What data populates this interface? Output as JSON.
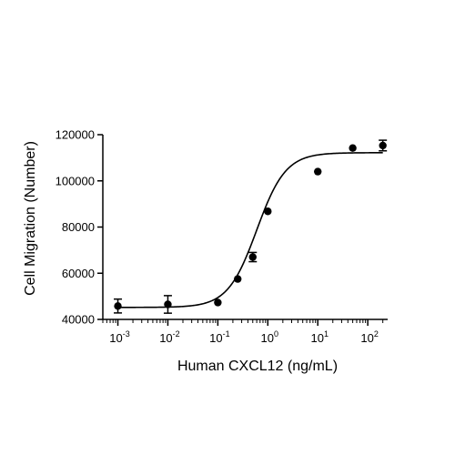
{
  "chart_data": {
    "type": "scatter",
    "xlabel": "Human CXCL12 (ng/mL)",
    "ylabel": "Cell Migration (Number)",
    "x_scale": "log",
    "xlim": [
      0.0005,
      250
    ],
    "ylim": [
      40000,
      120000
    ],
    "x_ticks": [
      {
        "value": 0.001,
        "base": "10",
        "exp": "-3"
      },
      {
        "value": 0.01,
        "base": "10",
        "exp": "-2"
      },
      {
        "value": 0.1,
        "base": "10",
        "exp": "-1"
      },
      {
        "value": 1,
        "base": "10",
        "exp": "0"
      },
      {
        "value": 10,
        "base": "10",
        "exp": "1"
      },
      {
        "value": 100,
        "base": "10",
        "exp": "2"
      }
    ],
    "y_ticks": [
      {
        "value": 40000,
        "label": "40000"
      },
      {
        "value": 60000,
        "label": "60000"
      },
      {
        "value": 80000,
        "label": "80000"
      },
      {
        "value": 100000,
        "label": "100000"
      },
      {
        "value": 120000,
        "label": "120000"
      }
    ],
    "grid": false,
    "series": [
      {
        "points": [
          {
            "x": 0.001,
            "y": 45800,
            "err": 3000
          },
          {
            "x": 0.01,
            "y": 46500,
            "err": 3800
          },
          {
            "x": 0.1,
            "y": 47300,
            "err": 0
          },
          {
            "x": 0.25,
            "y": 57500,
            "err": 0
          },
          {
            "x": 0.5,
            "y": 67000,
            "err": 2000
          },
          {
            "x": 1,
            "y": 86800,
            "err": 0
          },
          {
            "x": 10,
            "y": 104000,
            "err": 0
          },
          {
            "x": 50,
            "y": 114200,
            "err": 0
          },
          {
            "x": 200,
            "y": 115300,
            "err": 2300
          }
        ]
      }
    ],
    "fit_curve": {
      "model": "4PL",
      "bottom": 45200,
      "top": 112200,
      "ec50": 0.6,
      "hill": 1.5
    }
  }
}
